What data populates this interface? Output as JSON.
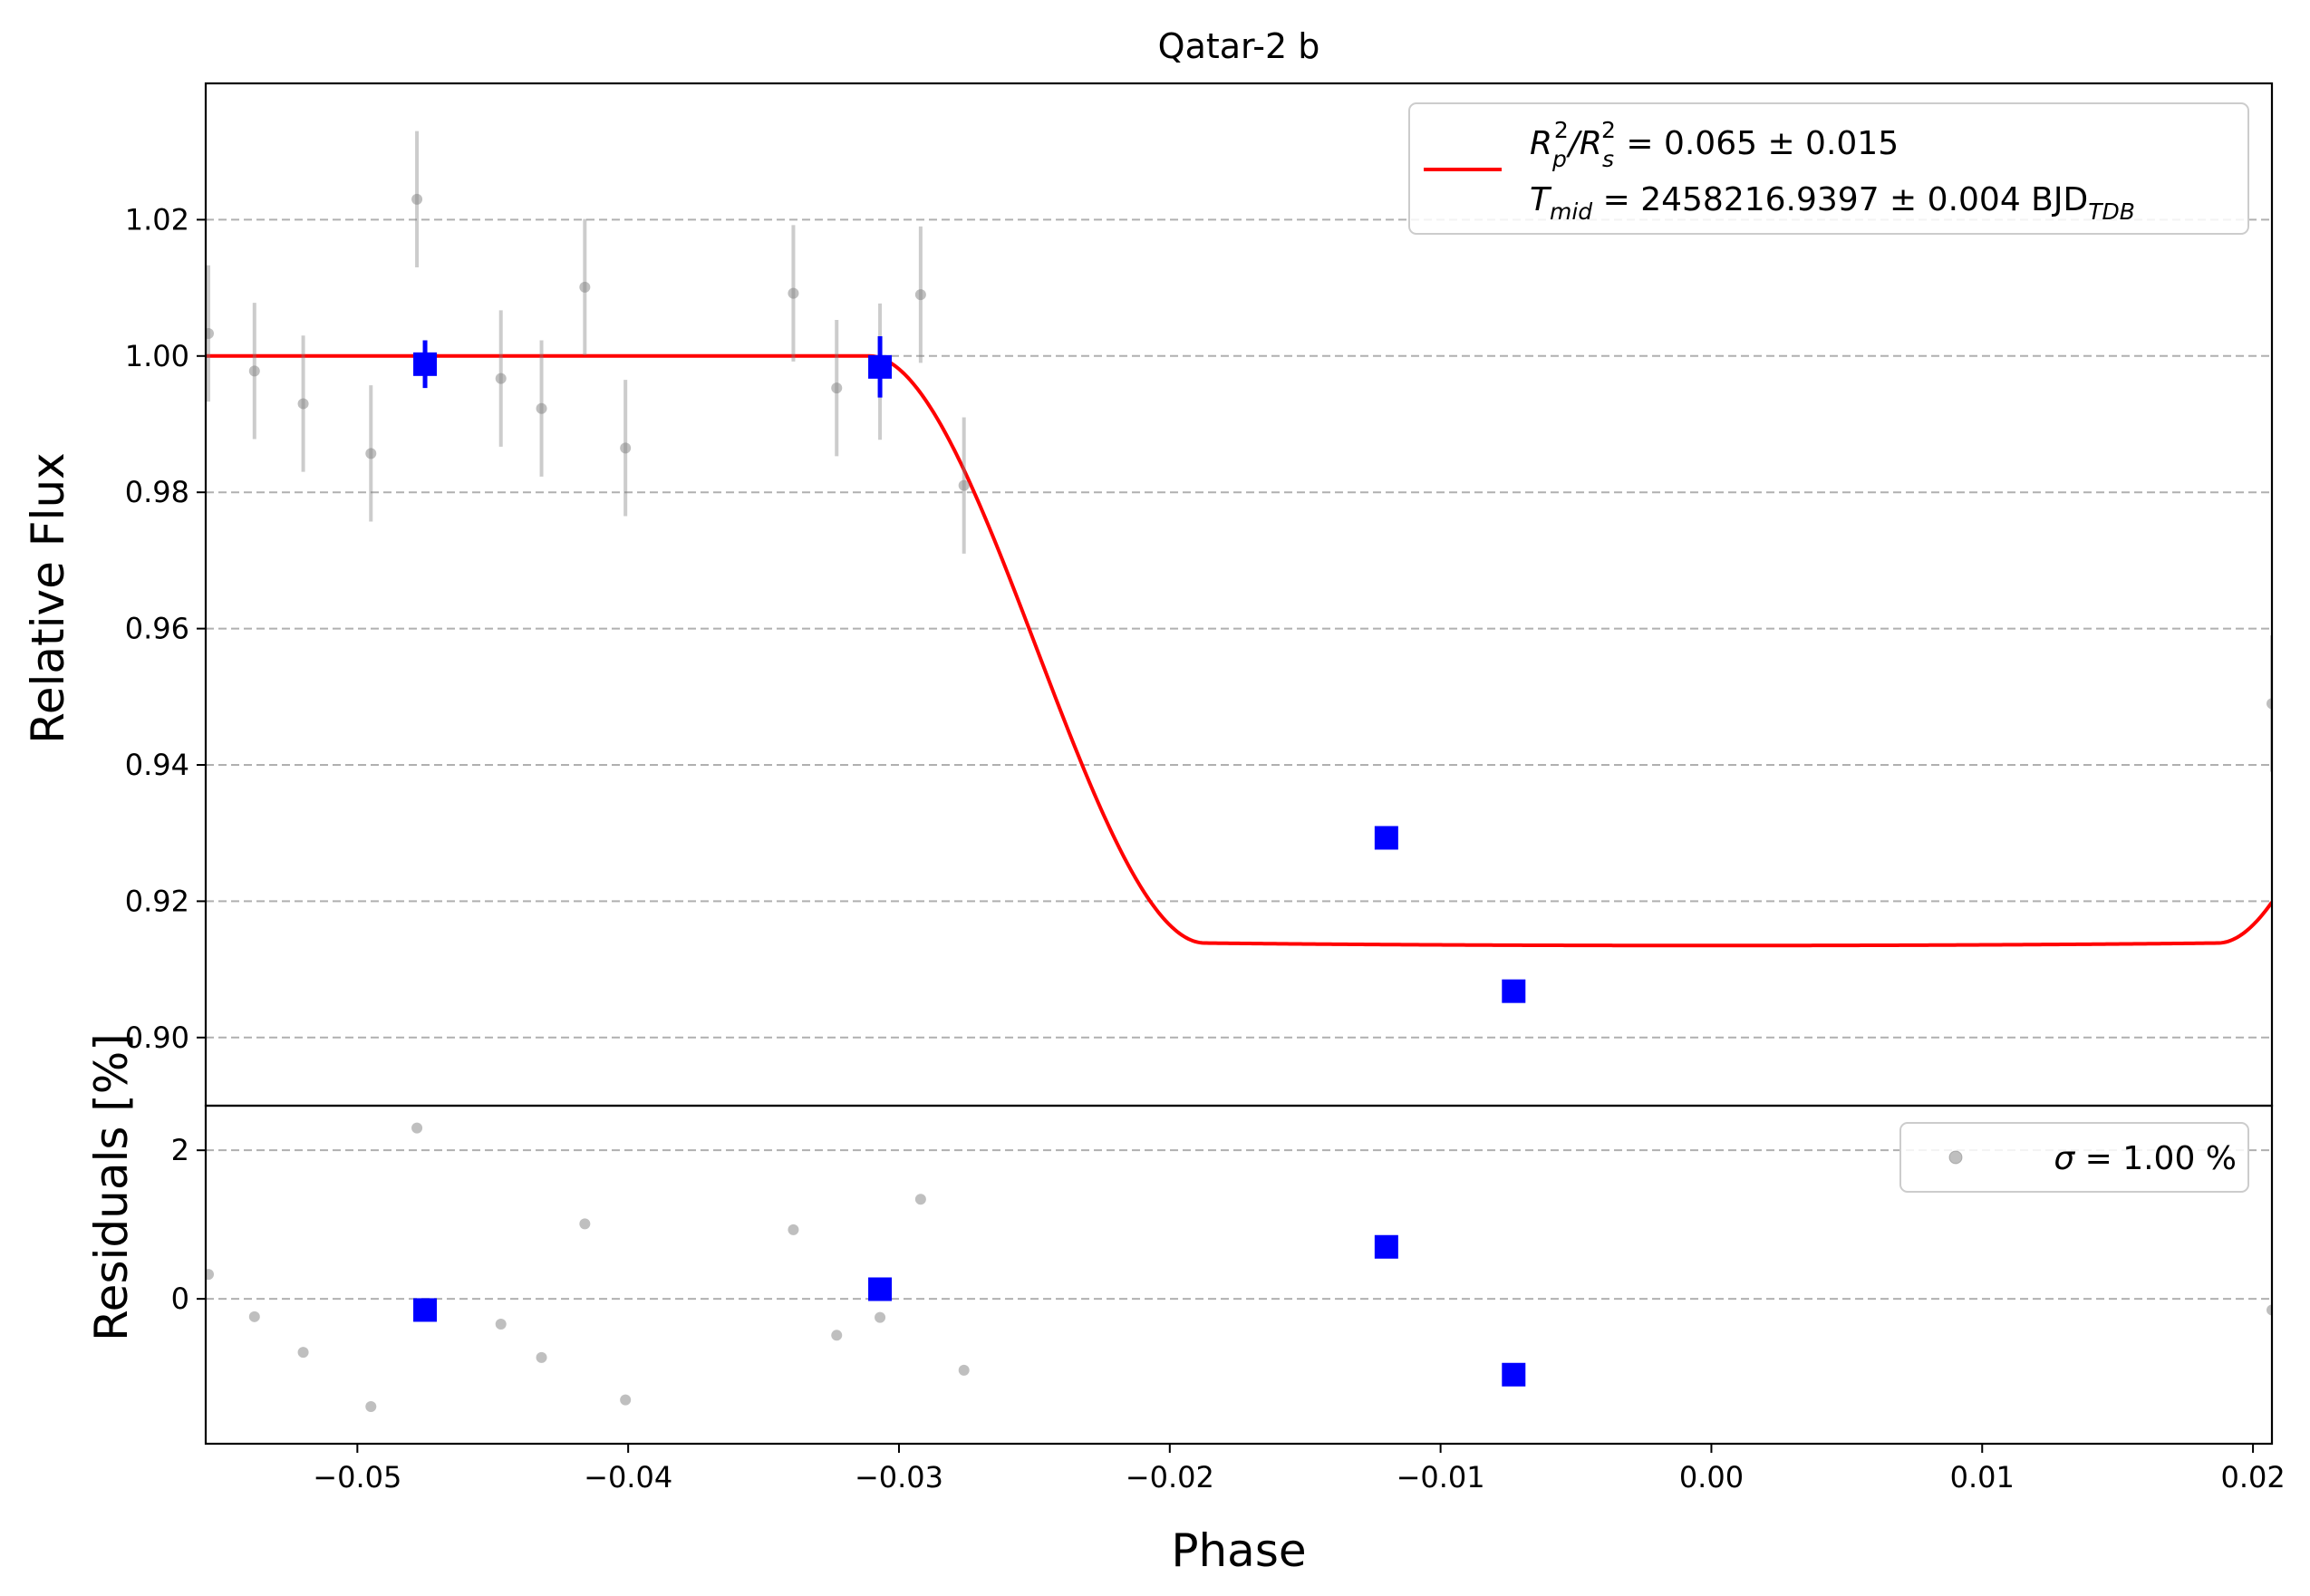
{
  "chart_data": {
    "type": "scatter",
    "title": "Qatar-2 b",
    "xlabel": "Phase",
    "xlim": [
      -0.0556,
      0.0207
    ],
    "grid": "horizontal dashed",
    "panels": {
      "flux": {
        "ylabel": "Relative Flux",
        "ylim": [
          0.89,
          1.04
        ],
        "yticks": [
          0.9,
          0.92,
          0.94,
          0.96,
          0.98,
          1.0,
          1.02
        ],
        "ytick_labels": [
          "0.90",
          "0.92",
          "0.94",
          "0.96",
          "0.98",
          "1.00",
          "1.02"
        ],
        "legend": {
          "placement": "top-right",
          "line1": {
            "lhs": "R",
            "sub1": "p",
            "sup1": "2",
            "sep": "/R",
            "sub2": "s",
            "sup2": "2",
            "rhs": " = 0.065 ± 0.015"
          },
          "line2": {
            "lhs": "T",
            "sub1": "mid",
            "rhs": " = 2458216.9397 ± 0.004 BJD",
            "sub2": "TDB"
          }
        }
      },
      "residuals": {
        "ylabel": "Residuals [%]",
        "ylim": [
          -1.95,
          2.6
        ],
        "yticks": [
          0,
          2
        ],
        "ytick_labels": [
          "0",
          "2"
        ],
        "legend": {
          "placement": "top-right",
          "label_symbol": "σ",
          "label_text": " = 1.00 %"
        }
      }
    },
    "xticks": [
      -0.05,
      -0.04,
      -0.03,
      -0.02,
      -0.01,
      0.0,
      0.01,
      0.02
    ],
    "xtick_labels": [
      "−0.05",
      "−0.04",
      "−0.03",
      "−0.02",
      "−0.01",
      "0.00",
      "0.01",
      "0.02"
    ],
    "raw_points": {
      "color": "#808080",
      "x": [
        -0.0555,
        -0.0538,
        -0.052,
        -0.0495,
        -0.0478,
        -0.0447,
        -0.0432,
        -0.0416,
        -0.0401,
        -0.0339,
        -0.0323,
        -0.0307,
        -0.0292,
        -0.0276,
        0.0207
      ],
      "y": [
        1.0033,
        0.9978,
        0.993,
        0.9857,
        1.023,
        0.9967,
        0.9923,
        1.0101,
        0.9865,
        1.0092,
        0.9953,
        0.9977,
        1.009,
        0.981,
        0.949
      ],
      "err": [
        0.01,
        0.01,
        0.01,
        0.01,
        0.01,
        0.01,
        0.01,
        0.01,
        0.01,
        0.01,
        0.01,
        0.01,
        0.01,
        0.01,
        0.01
      ],
      "residuals": [
        0.33,
        -0.24,
        -0.72,
        -1.45,
        2.3,
        -0.34,
        -0.79,
        1.01,
        -1.36,
        0.93,
        -0.49,
        -0.25,
        1.34,
        -0.96,
        -0.15
      ]
    },
    "binned_points": {
      "color": "#0000ff",
      "x": [
        -0.0475,
        -0.0307,
        -0.012,
        -0.0073
      ],
      "y": [
        0.9988,
        0.9984,
        0.9293,
        0.9068
      ],
      "err": [
        0.0035,
        0.0045,
        0.0,
        0.0
      ],
      "residuals": [
        -0.15,
        0.13,
        0.7,
        -1.02
      ]
    },
    "model": {
      "color": "#ff0000",
      "baseline": 1.0,
      "depth": 0.0865,
      "t1": 0.0311,
      "t2": 0.0187,
      "limb_u": 0.35
    }
  }
}
